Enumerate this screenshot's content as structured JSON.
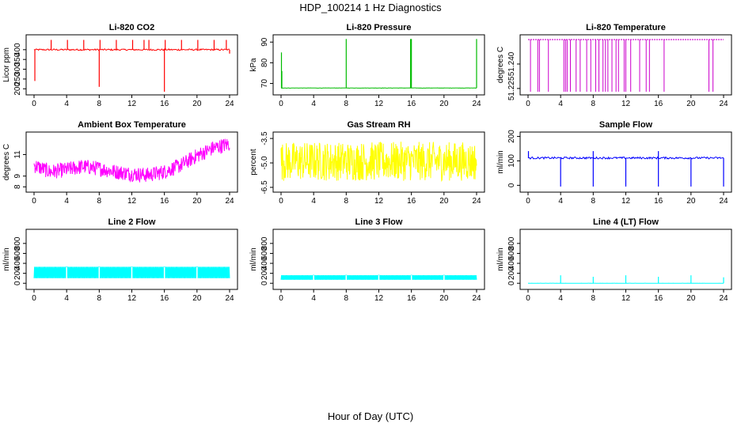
{
  "figure": {
    "title": "HDP_100214  1 Hz Diagnostics",
    "xlabel": "Hour of Day (UTC)"
  },
  "chart_data": [
    {
      "type": "line",
      "title": "Li-820 CO2",
      "ylabel": "Licor ppm",
      "color": "#ff0000",
      "xlim": [
        0,
        24
      ],
      "ylim": [
        185,
        460
      ],
      "yticks": [
        "200",
        "250",
        "300",
        "350",
        "400"
      ],
      "ytick_values": [
        200,
        250,
        300,
        350,
        400
      ],
      "xticks": [
        "0",
        "4",
        "8",
        "12",
        "16",
        "20",
        "24"
      ],
      "series": [
        {
          "pattern": "baseline_spikes",
          "baseline": 400,
          "noise": 8,
          "spikes_up": [
            {
              "x": 2.1,
              "y": 450
            },
            {
              "x": 4.1,
              "y": 450
            },
            {
              "x": 6.1,
              "y": 450
            },
            {
              "x": 8.1,
              "y": 450
            },
            {
              "x": 10.1,
              "y": 450
            },
            {
              "x": 12.1,
              "y": 450
            },
            {
              "x": 13.5,
              "y": 450
            },
            {
              "x": 14.1,
              "y": 450
            },
            {
              "x": 16.1,
              "y": 450
            },
            {
              "x": 18.1,
              "y": 450
            },
            {
              "x": 20.1,
              "y": 450
            },
            {
              "x": 22.1,
              "y": 450
            },
            {
              "x": 23.6,
              "y": 450
            }
          ],
          "spikes_down": [
            {
              "x": 0.1,
              "y": 240
            },
            {
              "x": 8.0,
              "y": 210
            },
            {
              "x": 16.0,
              "y": 185
            },
            {
              "x": 24.0,
              "y": 380
            }
          ]
        }
      ]
    },
    {
      "type": "line",
      "title": "Li-820 Pressure",
      "ylabel": "kPa",
      "color": "#00bb00",
      "xlim": [
        0,
        24
      ],
      "ylim": [
        66,
        92
      ],
      "yticks": [
        "70",
        "80",
        "90"
      ],
      "ytick_values": [
        70,
        80,
        90
      ],
      "xticks": [
        "0",
        "4",
        "8",
        "12",
        "16",
        "20",
        "24"
      ],
      "series": [
        {
          "pattern": "baseline_spikes",
          "baseline": 67.8,
          "noise": 0.15,
          "spikes_up": [
            {
              "x": 0.05,
              "y": 85
            },
            {
              "x": 0.1,
              "y": 76
            },
            {
              "x": 8.0,
              "y": 91.5
            },
            {
              "x": 15.9,
              "y": 91.5
            },
            {
              "x": 16.0,
              "y": 91.5
            },
            {
              "x": 24.0,
              "y": 91.5
            }
          ],
          "spikes_down": []
        }
      ]
    },
    {
      "type": "line",
      "title": "Li-820 Temperature",
      "ylabel": "degrees C",
      "color": "#cc00cc",
      "xlim": [
        0,
        24
      ],
      "ylim": [
        51.223,
        51.256
      ],
      "yticks": [
        "51.225",
        "51.240"
      ],
      "ytick_values": [
        51.225,
        51.24
      ],
      "xticks": [
        "0",
        "4",
        "8",
        "12",
        "16",
        "20",
        "24"
      ],
      "series": [
        {
          "pattern": "top_with_drops",
          "baseline": 51.255,
          "drop_to": 51.223,
          "drops": [
            0.3,
            1.2,
            1.4,
            2.5,
            4.4,
            4.6,
            4.8,
            5.2,
            5.9,
            6.4,
            7.2,
            7.7,
            8.3,
            8.7,
            9.2,
            9.5,
            9.8,
            10.3,
            10.8,
            11.1,
            11.8,
            12.0,
            12.6,
            13.7,
            14.5,
            14.9,
            16.7,
            22.2,
            22.7
          ]
        }
      ]
    },
    {
      "type": "line",
      "title": "Ambient Box Temperature",
      "ylabel": "degrees C",
      "color": "#ff00ff",
      "xlim": [
        0,
        24
      ],
      "ylim": [
        7.8,
        12.8
      ],
      "yticks": [
        "8",
        "9",
        "11"
      ],
      "ytick_values": [
        8,
        9,
        11
      ],
      "xticks": [
        "0",
        "4",
        "8",
        "12",
        "16",
        "20",
        "24"
      ],
      "series": [
        {
          "pattern": "noisy_band",
          "center": [
            [
              0,
              10.0
            ],
            [
              2,
              9.4
            ],
            [
              4,
              9.6
            ],
            [
              6,
              9.9
            ],
            [
              8,
              9.7
            ],
            [
              10,
              9.4
            ],
            [
              12,
              9.2
            ],
            [
              14,
              9.1
            ],
            [
              16,
              9.4
            ],
            [
              18,
              10.0
            ],
            [
              20,
              10.9
            ],
            [
              22,
              11.6
            ],
            [
              24,
              12.0
            ]
          ],
          "halfwidth": 0.7
        }
      ]
    },
    {
      "type": "line",
      "title": "Gas Stream RH",
      "ylabel": "percent",
      "color": "#ffff00",
      "xlim": [
        0,
        24
      ],
      "ylim": [
        -6.6,
        -3.3
      ],
      "yticks": [
        "-6.5",
        "-5.0",
        "-3.5"
      ],
      "ytick_values": [
        -6.5,
        -5.0,
        -3.5
      ],
      "xticks": [
        "0",
        "4",
        "8",
        "12",
        "16",
        "20",
        "24"
      ],
      "series": [
        {
          "pattern": "noisy_band",
          "center": [
            [
              0,
              -4.9
            ],
            [
              24,
              -4.9
            ]
          ],
          "halfwidth": 1.2
        }
      ]
    },
    {
      "type": "line",
      "title": "Sample Flow",
      "ylabel": "ml/min",
      "color": "#0000ff",
      "xlim": [
        0,
        24
      ],
      "ylim": [
        -15,
        205
      ],
      "yticks": [
        "0",
        "100",
        "200"
      ],
      "ytick_values": [
        0,
        100,
        200
      ],
      "xticks": [
        "0",
        "4",
        "8",
        "12",
        "16",
        "20",
        "24"
      ],
      "series": [
        {
          "pattern": "baseline_spikes",
          "baseline": 112,
          "noise": 8,
          "spikes_up": [
            {
              "x": 0.05,
              "y": 140
            },
            {
              "x": 8.0,
              "y": 140
            },
            {
              "x": 16.0,
              "y": 140
            }
          ],
          "spikes_down": [
            {
              "x": 4.0,
              "y": -5
            },
            {
              "x": 8.0,
              "y": -5
            },
            {
              "x": 12.0,
              "y": -5
            },
            {
              "x": 16.0,
              "y": -5
            },
            {
              "x": 20.0,
              "y": -5
            },
            {
              "x": 24.0,
              "y": -5
            }
          ]
        }
      ]
    },
    {
      "type": "line",
      "title": "Line 2 Flow",
      "ylabel": "ml/min",
      "color": "#00ffff",
      "xlim": [
        0,
        24
      ],
      "ylim": [
        -60,
        1020
      ],
      "yticks": [
        "0",
        "200",
        "400",
        "600",
        "800"
      ],
      "ytick_values": [
        0,
        200,
        400,
        600,
        800
      ],
      "xticks": [
        "0",
        "4",
        "8",
        "12",
        "16",
        "20",
        "24"
      ],
      "series": [
        {
          "pattern": "band_with_gaps",
          "low": 100,
          "high": 330,
          "gaps": [
            4.0,
            8.0,
            12.0,
            16.0,
            20.0
          ]
        }
      ]
    },
    {
      "type": "line",
      "title": "Line 3 Flow",
      "ylabel": "ml/min",
      "color": "#00ffff",
      "xlim": [
        0,
        24
      ],
      "ylim": [
        -60,
        1020
      ],
      "yticks": [
        "0",
        "200",
        "400",
        "600",
        "800"
      ],
      "ytick_values": [
        0,
        200,
        400,
        600,
        800
      ],
      "xticks": [
        "0",
        "4",
        "8",
        "12",
        "16",
        "20",
        "24"
      ],
      "series": [
        {
          "pattern": "band_with_gaps",
          "low": 70,
          "high": 160,
          "gaps": [
            4.0,
            8.0,
            12.0,
            16.0,
            20.0
          ]
        }
      ]
    },
    {
      "type": "line",
      "title": "Line 4 (LT) Flow",
      "ylabel": "ml/min",
      "color": "#00ffff",
      "xlim": [
        0,
        24
      ],
      "ylim": [
        -60,
        1020
      ],
      "yticks": [
        "0",
        "200",
        "400",
        "600",
        "800"
      ],
      "ytick_values": [
        0,
        200,
        400,
        600,
        800
      ],
      "xticks": [
        "0",
        "4",
        "8",
        "12",
        "16",
        "20",
        "24"
      ],
      "series": [
        {
          "pattern": "baseline_spikes",
          "baseline": 0,
          "noise": 4,
          "spikes_up": [
            {
              "x": 4.0,
              "y": 160
            },
            {
              "x": 8.0,
              "y": 130
            },
            {
              "x": 12.0,
              "y": 160
            },
            {
              "x": 16.0,
              "y": 130
            },
            {
              "x": 20.0,
              "y": 160
            },
            {
              "x": 24.0,
              "y": 120
            }
          ],
          "spikes_down": []
        }
      ]
    }
  ]
}
